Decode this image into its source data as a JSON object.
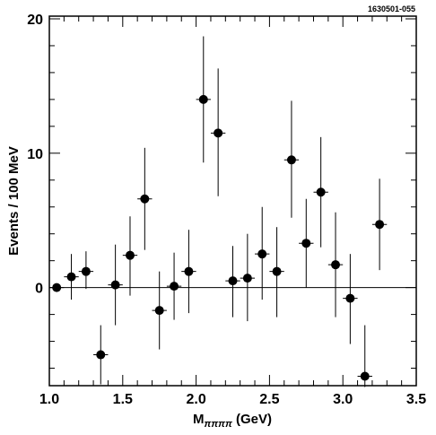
{
  "figure_id": "1630501-055",
  "chart_data": {
    "type": "scatter",
    "xlabel_main": "M",
    "xlabel_sub": "ππππ",
    "xlabel_unit": " (GeV)",
    "ylabel": "Events / 100 MeV",
    "xlim": [
      1.0,
      3.5
    ],
    "ylim": [
      -7.3,
      20.2
    ],
    "x_ticks": [
      "1.0",
      "1.5",
      "2.0",
      "2.5",
      "3.0",
      "3.5"
    ],
    "y_ticks": [
      "0",
      "10",
      "20"
    ],
    "zero_line": true,
    "grid": false,
    "x_bin_half_width": 0.05,
    "points": [
      {
        "x": 1.05,
        "y": 0.0,
        "err_low": 0.0,
        "err_high": 0.0
      },
      {
        "x": 1.15,
        "y": 0.8,
        "err_low": 1.7,
        "err_high": 1.7
      },
      {
        "x": 1.25,
        "y": 1.2,
        "err_low": 1.3,
        "err_high": 1.5
      },
      {
        "x": 1.35,
        "y": -5.0,
        "err_low": 2.2,
        "err_high": 2.2
      },
      {
        "x": 1.45,
        "y": 0.2,
        "err_low": 3.0,
        "err_high": 3.0
      },
      {
        "x": 1.55,
        "y": 2.4,
        "err_low": 3.0,
        "err_high": 2.9
      },
      {
        "x": 1.65,
        "y": 6.6,
        "err_low": 3.8,
        "err_high": 3.8
      },
      {
        "x": 1.75,
        "y": -1.7,
        "err_low": 2.9,
        "err_high": 2.9
      },
      {
        "x": 1.85,
        "y": 0.1,
        "err_low": 2.5,
        "err_high": 2.5
      },
      {
        "x": 1.95,
        "y": 1.2,
        "err_low": 3.1,
        "err_high": 3.1
      },
      {
        "x": 2.05,
        "y": 14.0,
        "err_low": 4.7,
        "err_high": 4.7
      },
      {
        "x": 2.15,
        "y": 11.5,
        "err_low": 4.7,
        "err_high": 4.8
      },
      {
        "x": 2.25,
        "y": 0.5,
        "err_low": 2.7,
        "err_high": 2.6
      },
      {
        "x": 2.35,
        "y": 0.7,
        "err_low": 3.2,
        "err_high": 3.3
      },
      {
        "x": 2.45,
        "y": 2.5,
        "err_low": 3.4,
        "err_high": 3.5
      },
      {
        "x": 2.55,
        "y": 1.2,
        "err_low": 3.4,
        "err_high": 3.3
      },
      {
        "x": 2.65,
        "y": 9.5,
        "err_low": 4.3,
        "err_high": 4.4
      },
      {
        "x": 2.75,
        "y": 3.3,
        "err_low": 3.3,
        "err_high": 3.3
      },
      {
        "x": 2.85,
        "y": 7.1,
        "err_low": 4.1,
        "err_high": 4.1
      },
      {
        "x": 2.95,
        "y": 1.7,
        "err_low": 3.9,
        "err_high": 3.9
      },
      {
        "x": 3.05,
        "y": -0.8,
        "err_low": 3.4,
        "err_high": 3.3
      },
      {
        "x": 3.15,
        "y": -6.6,
        "err_low": 0.8,
        "err_high": 3.8
      },
      {
        "x": 3.25,
        "y": 4.7,
        "err_low": 3.4,
        "err_high": 3.4
      }
    ]
  }
}
